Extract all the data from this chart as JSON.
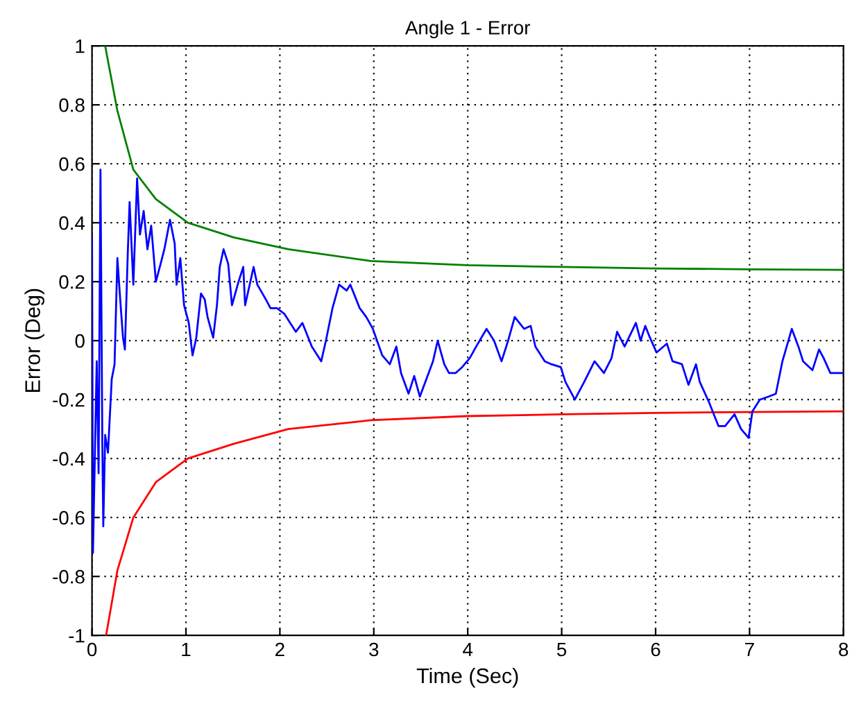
{
  "chart_data": {
    "type": "line",
    "title": "Angle 1 - Error",
    "xlabel": "Time (Sec)",
    "ylabel": "Error (Deg)",
    "xlim": [
      0,
      8
    ],
    "ylim": [
      -1,
      1
    ],
    "xticks": [
      0,
      1,
      2,
      3,
      4,
      5,
      6,
      7,
      8
    ],
    "yticks": [
      -1,
      -0.8,
      -0.6,
      -0.4,
      -0.2,
      0,
      0.2,
      0.4,
      0.6,
      0.8,
      1
    ],
    "grid": true,
    "line_style": "solid",
    "marker": "none",
    "legend": false,
    "series": [
      {
        "color": "#008000",
        "x": [
          0.14,
          0.27,
          0.44,
          0.68,
          1.02,
          1.51,
          2.09,
          2.97,
          3.99,
          5.01,
          6,
          7,
          8
        ],
        "values": [
          1.0,
          0.78,
          0.58,
          0.48,
          0.4,
          0.35,
          0.31,
          0.27,
          0.256,
          0.25,
          0.245,
          0.242,
          0.24
        ]
      },
      {
        "color": "#ff0000",
        "x": [
          0.15,
          0.27,
          0.44,
          0.68,
          1.02,
          1.51,
          2.09,
          2.97,
          3.99,
          5.01,
          6,
          7,
          8
        ],
        "values": [
          -1.0,
          -0.78,
          -0.6,
          -0.48,
          -0.4,
          -0.35,
          -0.3,
          -0.27,
          -0.256,
          -0.25,
          -0.245,
          -0.242,
          -0.24
        ]
      },
      {
        "color": "#0000ff",
        "x": [
          0,
          0.01,
          0.05,
          0.07,
          0.09,
          0.11,
          0.12,
          0.14,
          0.17,
          0.21,
          0.24,
          0.27,
          0.3,
          0.33,
          0.35,
          0.38,
          0.4,
          0.44,
          0.48,
          0.51,
          0.55,
          0.59,
          0.63,
          0.68,
          0.73,
          0.77,
          0.83,
          0.88,
          0.9,
          0.94,
          0.98,
          1.03,
          1.07,
          1.11,
          1.16,
          1.2,
          1.23,
          1.29,
          1.33,
          1.36,
          1.4,
          1.45,
          1.49,
          1.56,
          1.61,
          1.63,
          1.72,
          1.76,
          1.85,
          1.9,
          1.97,
          2.05,
          2.17,
          2.24,
          2.34,
          2.44,
          2.49,
          2.56,
          2.63,
          2.71,
          2.75,
          2.85,
          2.92,
          2.99,
          3.09,
          3.17,
          3.24,
          3.29,
          3.37,
          3.43,
          3.49,
          3.56,
          3.63,
          3.68,
          3.75,
          3.8,
          3.87,
          3.94,
          4.02,
          4.09,
          4.2,
          4.28,
          4.36,
          4.43,
          4.5,
          4.6,
          4.67,
          4.72,
          4.82,
          4.89,
          4.99,
          5.04,
          5.14,
          5.24,
          5.35,
          5.45,
          5.53,
          5.59,
          5.67,
          5.79,
          5.84,
          5.89,
          5.94,
          6.01,
          6.12,
          6.18,
          6.28,
          6.35,
          6.43,
          6.47,
          6.57,
          6.67,
          6.74,
          6.84,
          6.91,
          6.99,
          7.03,
          7.11,
          7.2,
          7.28,
          7.35,
          7.45,
          7.52,
          7.57,
          7.67,
          7.74,
          7.79,
          7.86,
          8
        ],
        "values": [
          0.36,
          -0.72,
          -0.07,
          -0.45,
          0.58,
          -0.35,
          -0.63,
          -0.32,
          -0.38,
          -0.13,
          -0.08,
          0.28,
          0.14,
          0.01,
          -0.03,
          0.29,
          0.47,
          0.19,
          0.55,
          0.36,
          0.44,
          0.31,
          0.39,
          0.2,
          0.26,
          0.31,
          0.41,
          0.33,
          0.19,
          0.28,
          0.12,
          0.06,
          -0.05,
          0.01,
          0.16,
          0.14,
          0.08,
          0.01,
          0.12,
          0.25,
          0.31,
          0.26,
          0.12,
          0.2,
          0.25,
          0.12,
          0.25,
          0.19,
          0.14,
          0.11,
          0.11,
          0.09,
          0.03,
          0.06,
          -0.02,
          -0.07,
          0.0,
          0.11,
          0.19,
          0.17,
          0.19,
          0.11,
          0.08,
          0.04,
          -0.05,
          -0.08,
          -0.02,
          -0.11,
          -0.18,
          -0.12,
          -0.19,
          -0.13,
          -0.07,
          0.0,
          -0.08,
          -0.11,
          -0.11,
          -0.09,
          -0.06,
          -0.02,
          0.04,
          0.0,
          -0.07,
          0.0,
          0.08,
          0.04,
          0.05,
          -0.02,
          -0.07,
          -0.08,
          -0.09,
          -0.14,
          -0.2,
          -0.14,
          -0.07,
          -0.11,
          -0.06,
          0.03,
          -0.02,
          0.06,
          0.0,
          0.05,
          0.01,
          -0.04,
          -0.01,
          -0.07,
          -0.08,
          -0.15,
          -0.08,
          -0.14,
          -0.21,
          -0.29,
          -0.29,
          -0.25,
          -0.3,
          -0.33,
          -0.24,
          -0.2,
          -0.19,
          -0.18,
          -0.07,
          0.04,
          -0.02,
          -0.07,
          -0.1,
          -0.03,
          -0.06,
          -0.11,
          -0.11
        ]
      }
    ]
  }
}
